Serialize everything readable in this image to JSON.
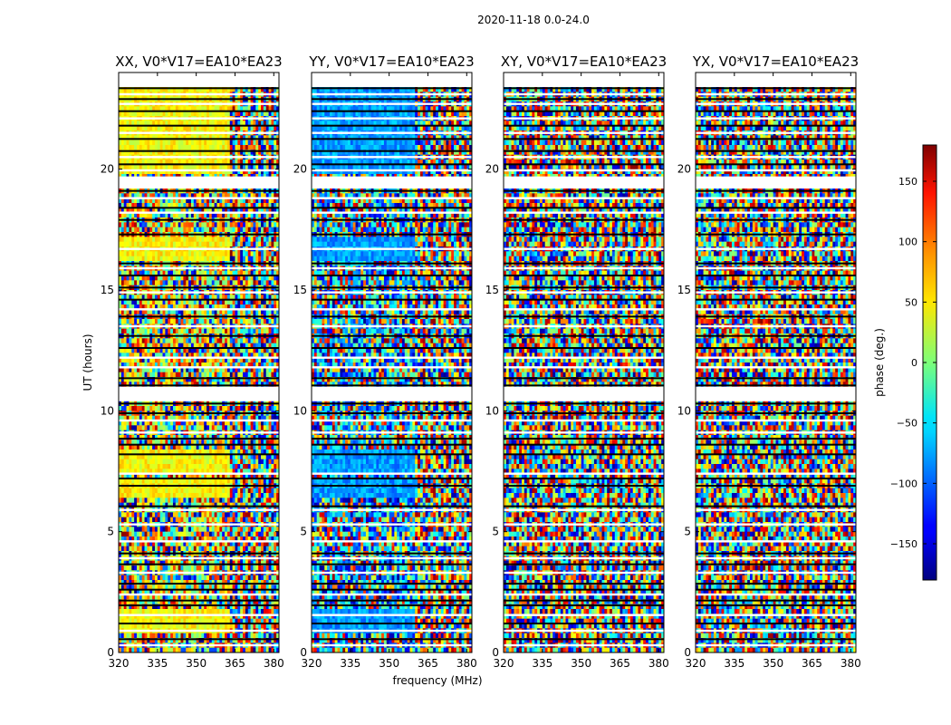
{
  "chart_data": {
    "type": "heatmap",
    "suptitle": "2020-11-18 0.0-24.0",
    "xlabel": "frequency (MHz)",
    "ylabel": "UT (hours)",
    "xlim": [
      320,
      382
    ],
    "ylim": [
      0,
      24
    ],
    "xticks": [
      320,
      335,
      350,
      365,
      380
    ],
    "yticks": [
      0,
      5,
      10,
      15,
      20
    ],
    "panels": [
      {
        "title": "XX, V0*V17=EA10*EA23",
        "pol": "XX"
      },
      {
        "title": "YY, V0*V17=EA10*EA23",
        "pol": "YY"
      },
      {
        "title": "XY, V0*V17=EA10*EA23",
        "pol": "XY"
      },
      {
        "title": "YX, V0*V17=EA10*EA23",
        "pol": "YX"
      }
    ],
    "colorbar": {
      "label": "phase (deg.)",
      "range": [
        -180,
        180
      ],
      "ticks": [
        150,
        100,
        50,
        0,
        -50,
        -100,
        -150
      ],
      "tick_labels": [
        "150",
        "100",
        "50",
        "0",
        "−50",
        "−100",
        "−150"
      ],
      "colormap": "jet"
    },
    "flagged_ut_ranges": [
      [
        10.4,
        11.0
      ],
      [
        19.2,
        19.7
      ],
      [
        23.5,
        24.0
      ]
    ],
    "coherent_phase": {
      "XX": {
        "base_deg": 45,
        "coherent_until_mhz": 363
      },
      "YY": {
        "base_deg": -80,
        "coherent_until_mhz": 360
      },
      "XY": {
        "base_deg": null,
        "coherent_until_mhz": null
      },
      "YX": {
        "base_deg": null,
        "coherent_until_mhz": null
      }
    },
    "coherent_ut_ranges": [
      [
        16.2,
        17.3
      ],
      [
        0.7,
        1.7
      ],
      [
        6.3,
        7.1
      ],
      [
        7.5,
        8.4
      ],
      [
        21.3,
        23.5
      ],
      [
        19.8,
        21.2
      ]
    ]
  }
}
